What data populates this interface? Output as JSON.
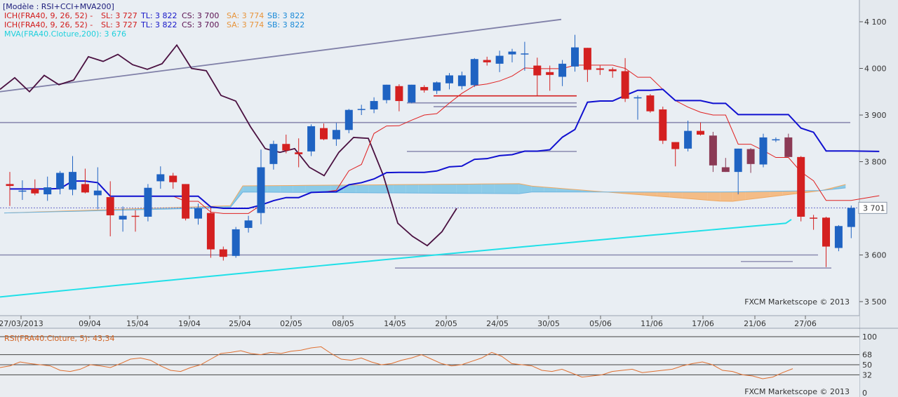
{
  "chart_data": [
    {
      "type": "candlestick",
      "legend": {
        "model": "[Modèle : RSI+CCI+MVA200]",
        "ich1": {
          "name": "ICH(FRA40, 9, 26, 52) -",
          "sl": "SL: 3 727",
          "tl": "TL: 3 822",
          "cs": "CS: 3 700",
          "sa": "SA: 3 774",
          "sb": "SB: 3 822"
        },
        "ich2": {
          "name": "ICH(FRA40, 9, 26, 52) -",
          "sl": "SL: 3 727",
          "tl": "TL: 3 822",
          "cs": "CS: 3 700",
          "sa": "SA: 3 774",
          "sb": "SB: 3 822"
        },
        "mva": "MVA(FRA40.Cloture,200): 3 676"
      },
      "y_ticks": [
        "4 100",
        "4 000",
        "3 900",
        "3 800",
        "3 600",
        "3 500"
      ],
      "y_tick_values": [
        4100,
        4000,
        3900,
        3800,
        3600,
        3500
      ],
      "price_label": "3 701",
      "price_value": 3701,
      "ylim": [
        3490,
        4128
      ],
      "x_ticks": [
        "27/03/2013",
        "09/04",
        "15/04",
        "19/04",
        "25/04",
        "02/05",
        "08/05",
        "14/05",
        "20/05",
        "24/05",
        "30/05",
        "05/06",
        "11/06",
        "17/06",
        "21/06",
        "27/06"
      ],
      "watermark": "FXCM Marketscope © 2013",
      "colors": {
        "up": "#1f63c2",
        "down": "#d42020",
        "down_in_cloud": "#8b3a55",
        "tenkan": "#e02020",
        "kijun": "#1010d0",
        "chikou": "#4a1040",
        "mva": "#20e0e8",
        "cloud_bull": "#8ccbe8",
        "cloud_bear": "#f4bc86",
        "trend": "#8080a8",
        "level": "#8a8ab0"
      },
      "candles": [
        {
          "o": 3752,
          "h": 3778,
          "l": 3705,
          "c": 3748
        },
        {
          "o": 3738,
          "h": 3760,
          "l": 3718,
          "c": 3738
        },
        {
          "o": 3742,
          "h": 3762,
          "l": 3728,
          "c": 3732
        },
        {
          "o": 3730,
          "h": 3768,
          "l": 3716,
          "c": 3745
        },
        {
          "o": 3742,
          "h": 3780,
          "l": 3730,
          "c": 3776
        },
        {
          "o": 3740,
          "h": 3812,
          "l": 3728,
          "c": 3778
        },
        {
          "o": 3752,
          "h": 3785,
          "l": 3732,
          "c": 3734
        },
        {
          "o": 3728,
          "h": 3788,
          "l": 3698,
          "c": 3738
        },
        {
          "o": 3724,
          "h": 3758,
          "l": 3640,
          "c": 3685
        },
        {
          "o": 3676,
          "h": 3704,
          "l": 3650,
          "c": 3684
        },
        {
          "o": 3684,
          "h": 3696,
          "l": 3650,
          "c": 3682
        },
        {
          "o": 3682,
          "h": 3752,
          "l": 3672,
          "c": 3744
        },
        {
          "o": 3758,
          "h": 3790,
          "l": 3742,
          "c": 3773
        },
        {
          "o": 3770,
          "h": 3776,
          "l": 3742,
          "c": 3756
        },
        {
          "o": 3752,
          "h": 3752,
          "l": 3674,
          "c": 3678
        },
        {
          "o": 3678,
          "h": 3710,
          "l": 3665,
          "c": 3700
        },
        {
          "o": 3690,
          "h": 3702,
          "l": 3594,
          "c": 3612
        },
        {
          "o": 3612,
          "h": 3618,
          "l": 3588,
          "c": 3596
        },
        {
          "o": 3598,
          "h": 3660,
          "l": 3594,
          "c": 3655
        },
        {
          "o": 3658,
          "h": 3684,
          "l": 3648,
          "c": 3674
        },
        {
          "o": 3690,
          "h": 3826,
          "l": 3666,
          "c": 3788
        },
        {
          "o": 3795,
          "h": 3845,
          "l": 3783,
          "c": 3838
        },
        {
          "o": 3838,
          "h": 3858,
          "l": 3818,
          "c": 3824
        },
        {
          "o": 3820,
          "h": 3850,
          "l": 3788,
          "c": 3816
        },
        {
          "o": 3822,
          "h": 3880,
          "l": 3812,
          "c": 3876
        },
        {
          "o": 3872,
          "h": 3882,
          "l": 3846,
          "c": 3848
        },
        {
          "o": 3848,
          "h": 3883,
          "l": 3834,
          "c": 3868
        },
        {
          "o": 3868,
          "h": 3913,
          "l": 3861,
          "c": 3911
        },
        {
          "o": 3912,
          "h": 3922,
          "l": 3900,
          "c": 3913
        },
        {
          "o": 3912,
          "h": 3938,
          "l": 3904,
          "c": 3930
        },
        {
          "o": 3932,
          "h": 3965,
          "l": 3925,
          "c": 3965
        },
        {
          "o": 3962,
          "h": 3966,
          "l": 3908,
          "c": 3930
        },
        {
          "o": 3927,
          "h": 3965,
          "l": 3925,
          "c": 3965
        },
        {
          "o": 3960,
          "h": 3964,
          "l": 3948,
          "c": 3953
        },
        {
          "o": 3952,
          "h": 3972,
          "l": 3945,
          "c": 3970
        },
        {
          "o": 3968,
          "h": 3990,
          "l": 3955,
          "c": 3985
        },
        {
          "o": 3962,
          "h": 3993,
          "l": 3955,
          "c": 3985
        },
        {
          "o": 3964,
          "h": 4022,
          "l": 3960,
          "c": 4020
        },
        {
          "o": 4018,
          "h": 4025,
          "l": 4006,
          "c": 4013
        },
        {
          "o": 4010,
          "h": 4038,
          "l": 3992,
          "c": 4027
        },
        {
          "o": 4030,
          "h": 4042,
          "l": 4013,
          "c": 4036
        },
        {
          "o": 4030,
          "h": 4057,
          "l": 3995,
          "c": 4032
        },
        {
          "o": 4006,
          "h": 4023,
          "l": 3942,
          "c": 3985
        },
        {
          "o": 3992,
          "h": 4006,
          "l": 3952,
          "c": 3986
        },
        {
          "o": 3982,
          "h": 4018,
          "l": 3962,
          "c": 4010
        },
        {
          "o": 4004,
          "h": 4072,
          "l": 3993,
          "c": 4045
        },
        {
          "o": 4044,
          "h": 4044,
          "l": 3971,
          "c": 3997
        },
        {
          "o": 4000,
          "h": 4006,
          "l": 3986,
          "c": 3997
        },
        {
          "o": 3998,
          "h": 4002,
          "l": 3980,
          "c": 3994
        },
        {
          "o": 3994,
          "h": 4022,
          "l": 3928,
          "c": 3935
        },
        {
          "o": 3936,
          "h": 3942,
          "l": 3890,
          "c": 3938
        },
        {
          "o": 3942,
          "h": 3945,
          "l": 3905,
          "c": 3908
        },
        {
          "o": 3912,
          "h": 3918,
          "l": 3838,
          "c": 3845
        },
        {
          "o": 3842,
          "h": 3842,
          "l": 3790,
          "c": 3827
        },
        {
          "o": 3828,
          "h": 3888,
          "l": 3822,
          "c": 3866
        },
        {
          "o": 3866,
          "h": 3884,
          "l": 3856,
          "c": 3858
        },
        {
          "o": 3856,
          "h": 3864,
          "l": 3778,
          "c": 3792
        },
        {
          "o": 3788,
          "h": 3808,
          "l": 3778,
          "c": 3778
        },
        {
          "o": 3778,
          "h": 3828,
          "l": 3730,
          "c": 3828
        },
        {
          "o": 3827,
          "h": 3829,
          "l": 3776,
          "c": 3795
        },
        {
          "o": 3794,
          "h": 3860,
          "l": 3788,
          "c": 3852
        },
        {
          "o": 3848,
          "h": 3852,
          "l": 3842,
          "c": 3848
        },
        {
          "o": 3852,
          "h": 3860,
          "l": 3814,
          "c": 3810
        },
        {
          "o": 3810,
          "h": 3812,
          "l": 3672,
          "c": 3682
        },
        {
          "o": 3680,
          "h": 3686,
          "l": 3654,
          "c": 3678
        },
        {
          "o": 3680,
          "h": 3682,
          "l": 3574,
          "c": 3618
        },
        {
          "o": 3615,
          "h": 3664,
          "l": 3608,
          "c": 3662
        },
        {
          "o": 3660,
          "h": 3706,
          "l": 3636,
          "c": 3701
        }
      ],
      "horizontal_levels": [
        3884,
        3941,
        3926,
        3918,
        3822,
        3600,
        3572,
        3586
      ],
      "rsi": {
        "label": "RSI(FRA40.Cloture, 5): 43,34",
        "ticks": [
          "100",
          "68",
          "50",
          "32",
          "0"
        ],
        "tick_values": [
          100,
          68,
          50,
          32,
          0
        ],
        "values": [
          45,
          48,
          55,
          52,
          50,
          48,
          40,
          38,
          42,
          50,
          48,
          45,
          52,
          60,
          62,
          58,
          48,
          40,
          38,
          45,
          50,
          60,
          70,
          72,
          75,
          70,
          68,
          72,
          70,
          74,
          76,
          80,
          82,
          70,
          60,
          58,
          62,
          55,
          50,
          52,
          58,
          62,
          68,
          60,
          52,
          48,
          50,
          56,
          62,
          72,
          65,
          52,
          50,
          48,
          40,
          38,
          42,
          35,
          28,
          30,
          32,
          38,
          40,
          42,
          36,
          38,
          40,
          42,
          48,
          52,
          55,
          50,
          40,
          38,
          32,
          30,
          25,
          28,
          36,
          43
        ]
      }
    }
  ]
}
